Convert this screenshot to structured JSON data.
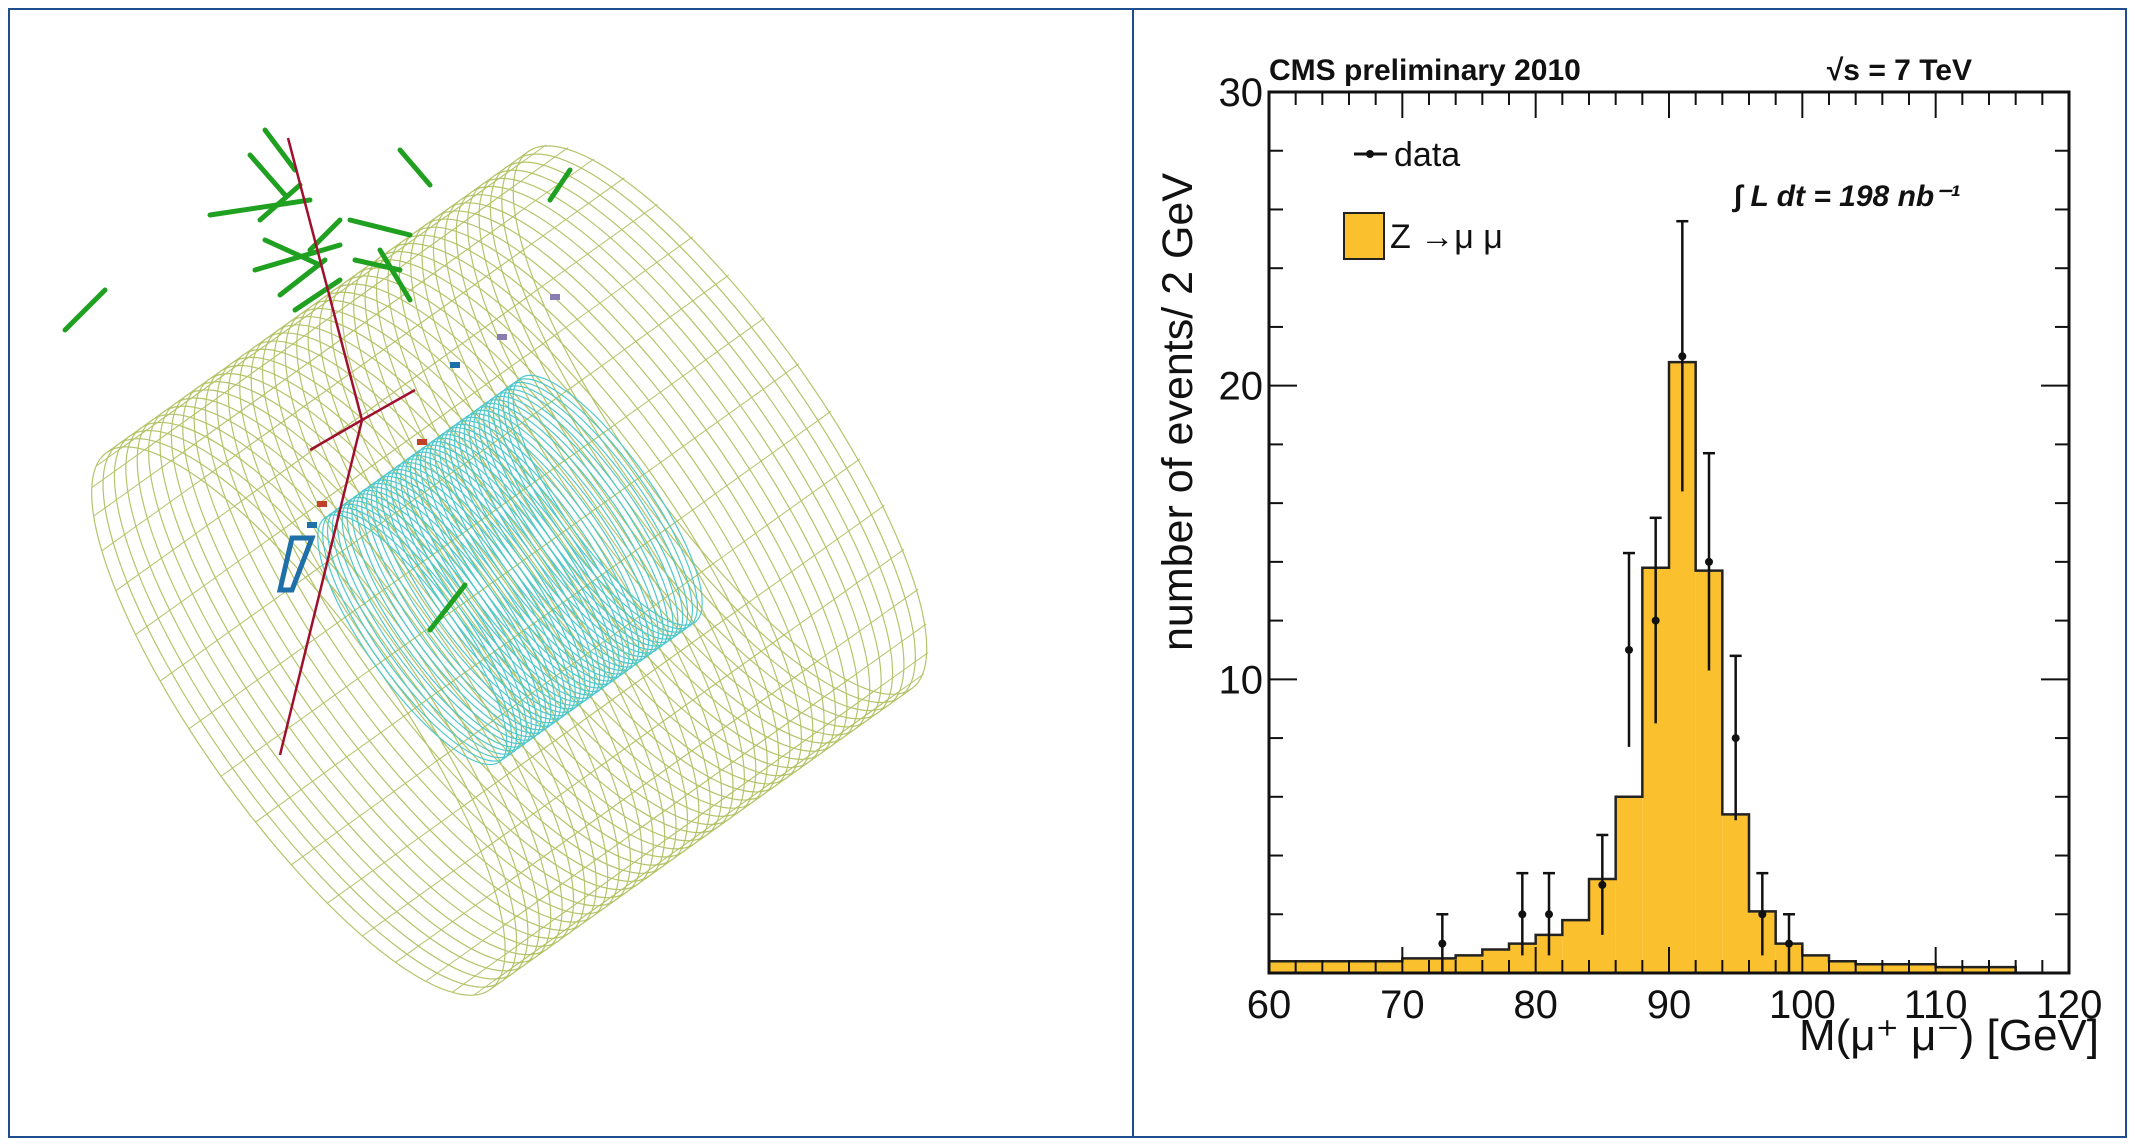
{
  "colors": {
    "panel_border": "#1f4e8c",
    "muon_track": "#a0102e",
    "muon_chamber": "#20a020",
    "calo_wireframe": "#b5c46a",
    "tracker": "#4fc8cc",
    "histogram_fill": "#fbc02d",
    "histogram_edge": "#222222",
    "data_marker": "#111111"
  },
  "chart_data": {
    "type": "bar",
    "header_left": "CMS preliminary 2010",
    "header_right": "√s = 7 TeV",
    "xlabel": "M(μ⁺ μ⁻) [GeV]",
    "ylabel": "number of events/ 2 GeV",
    "xlim": [
      60,
      120
    ],
    "ylim": [
      0,
      30
    ],
    "x_ticks": [
      "60",
      "70",
      "80",
      "90",
      "100",
      "110",
      "120"
    ],
    "y_ticks": [
      "10",
      "20",
      "30"
    ],
    "legend_data": "data",
    "legend_mc": "Z →μ μ",
    "luminosity": "∫ L dt = 198 nb⁻¹",
    "bin_edges": [
      60,
      62,
      64,
      66,
      68,
      70,
      72,
      74,
      76,
      78,
      80,
      82,
      84,
      86,
      88,
      90,
      92,
      94,
      96,
      98,
      100,
      102,
      104,
      106,
      108,
      110,
      112,
      114,
      116
    ],
    "mc_values": [
      0.4,
      0.4,
      0.4,
      0.4,
      0.4,
      0.5,
      0.5,
      0.6,
      0.8,
      1.0,
      1.3,
      1.8,
      3.2,
      6.0,
      13.8,
      20.8,
      13.7,
      5.4,
      2.1,
      1.0,
      0.6,
      0.4,
      0.3,
      0.3,
      0.3,
      0.2,
      0.2,
      0.2
    ],
    "data_points": [
      {
        "x": 73,
        "y": 1,
        "err": 1
      },
      {
        "x": 79,
        "y": 2,
        "err": 1.4
      },
      {
        "x": 81,
        "y": 2,
        "err": 1.4
      },
      {
        "x": 85,
        "y": 3,
        "err": 1.7
      },
      {
        "x": 87,
        "y": 11,
        "err": 3.3
      },
      {
        "x": 89,
        "y": 12,
        "err": 3.5
      },
      {
        "x": 91,
        "y": 21,
        "err": 4.6
      },
      {
        "x": 93,
        "y": 14,
        "err": 3.7
      },
      {
        "x": 95,
        "y": 8,
        "err": 2.8
      },
      {
        "x": 97,
        "y": 2,
        "err": 1.4
      },
      {
        "x": 99,
        "y": 1,
        "err": 1
      }
    ]
  }
}
